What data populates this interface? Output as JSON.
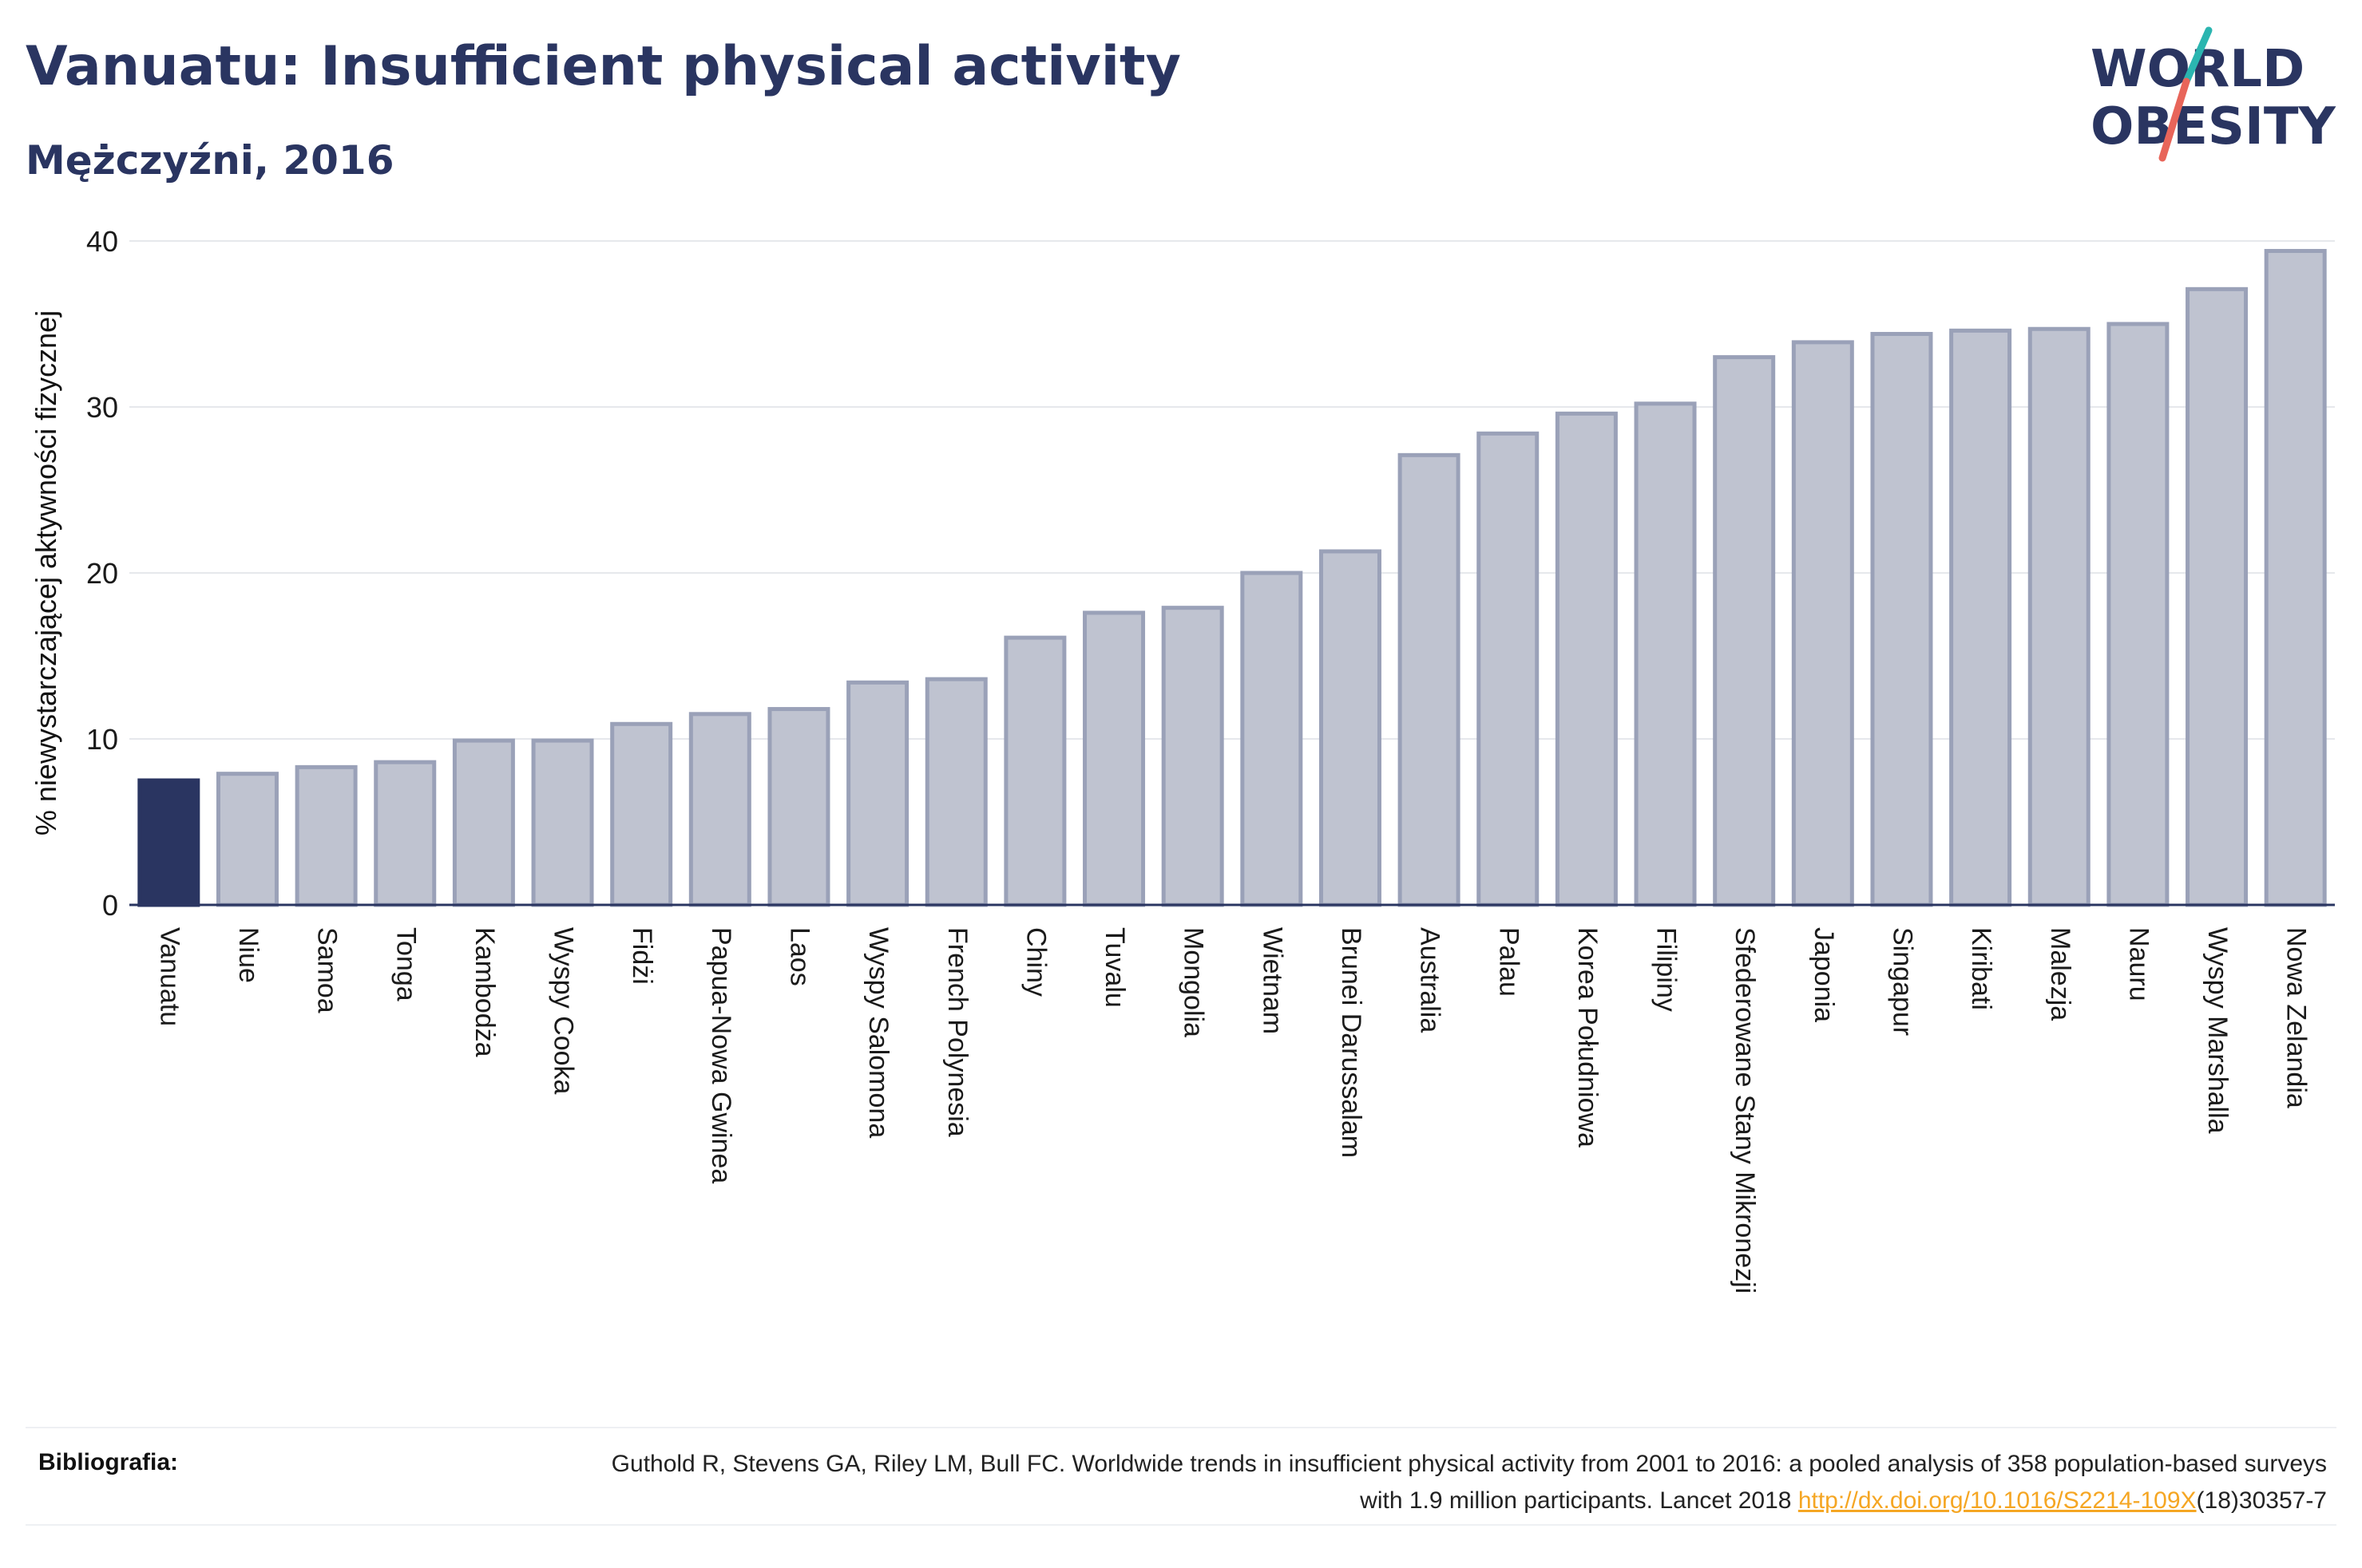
{
  "header": {
    "title": "Vanuatu: Insufficient physical activity",
    "subtitle": "Mężczyźni, 2016"
  },
  "logo": {
    "line1": "WORLD",
    "line2": "OBESITY",
    "colors": {
      "text": "#2a3561",
      "slash_teal": "#2bb5b0",
      "slash_red": "#e8655a"
    }
  },
  "colors": {
    "highlight_bar": "#2a3561",
    "bar_fill": "#bfc3d0",
    "bar_stroke": "#9aa1b8",
    "grid": "#e6e8ec",
    "axis": "#2a3561",
    "text": "#1a1a1a"
  },
  "chart_data": {
    "type": "bar",
    "title": "Vanuatu: Insufficient physical activity",
    "subtitle": "Mężczyźni, 2016",
    "xlabel": "",
    "ylabel": "% niewystarczającej aktywności fizycznej",
    "ylim": [
      0,
      40
    ],
    "yticks": [
      0,
      10,
      20,
      30,
      40
    ],
    "grid": true,
    "highlight": "Vanuatu",
    "categories": [
      "Vanuatu",
      "Niue",
      "Samoa",
      "Tonga",
      "Kambodża",
      "Wyspy Cooka",
      "Fidżi",
      "Papua-Nowa Gwinea",
      "Laos",
      "Wyspy Salomona",
      "French Polynesia",
      "Chiny",
      "Tuvalu",
      "Mongolia",
      "Wietnam",
      "Brunei Darussalam",
      "Australia",
      "Palau",
      "Korea Południowa",
      "Filipiny",
      "Sfederowane Stany Mikronezji",
      "Japonia",
      "Singapur",
      "Kiribati",
      "Malezja",
      "Nauru",
      "Wyspy Marshalla",
      "Nowa Zelandia"
    ],
    "values": [
      7.5,
      7.9,
      8.3,
      8.6,
      9.9,
      9.9,
      10.9,
      11.5,
      11.8,
      13.4,
      13.6,
      16.1,
      17.6,
      17.9,
      20.0,
      21.3,
      27.1,
      28.4,
      29.6,
      30.2,
      33.0,
      33.9,
      34.4,
      34.6,
      34.7,
      35.0,
      37.1,
      39.4
    ]
  },
  "references": {
    "label": "Bibliografia:",
    "text_before": "Guthold R, Stevens GA, Riley LM, Bull FC. Worldwide trends in insufficient physical activity from 2001 to 2016: a pooled analysis of 358 population-based surveys with 1.9 million participants. Lancet 2018 ",
    "link": "http://dx.doi.org/10.1016/S2214-109X",
    "text_after": "(18)30357-7"
  }
}
